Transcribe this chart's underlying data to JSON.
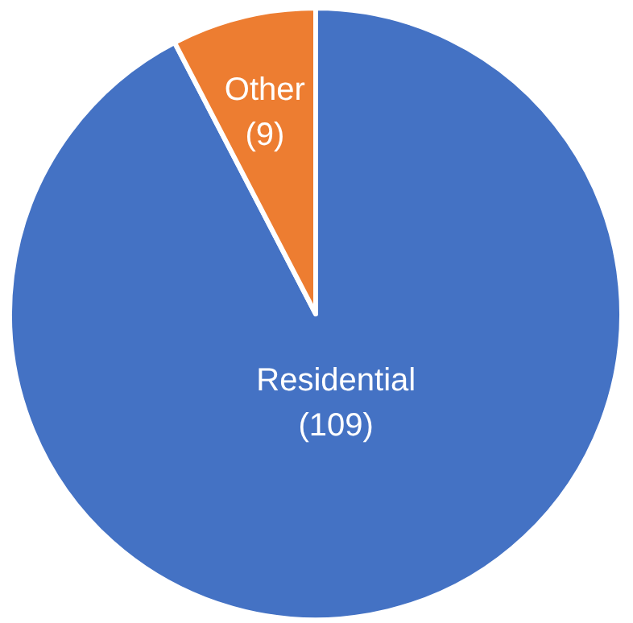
{
  "chart_data": {
    "type": "pie",
    "categories": [
      "Residential",
      "Other"
    ],
    "values": [
      109,
      9
    ],
    "colors": [
      "#4472c4",
      "#ed7d31"
    ],
    "value_labels": [
      "(109)",
      "(9)"
    ]
  }
}
